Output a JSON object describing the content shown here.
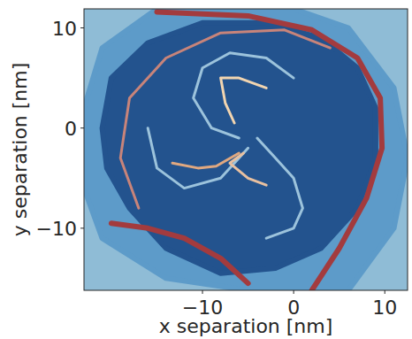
{
  "chart_data": {
    "type": "contour",
    "x_label": "x separation [nm]",
    "y_label": "y separation [nm]",
    "xlim": [
      -23,
      12.5
    ],
    "ylim": [
      -16.2,
      11.9
    ],
    "xticks": [
      {
        "value": -10,
        "label": "−10"
      },
      0,
      10
    ],
    "yticks": [
      {
        "value": -10,
        "label": "−10"
      },
      0,
      10
    ],
    "grid": false,
    "background": "#8fbcd6",
    "regions": [
      {
        "color": "#5d9bc9",
        "x": [
          -23,
          -21,
          -15,
          0,
          6,
          11,
          12.5,
          11,
          6,
          -5,
          -14,
          -21,
          -23
        ],
        "y": [
          2,
          8,
          11.9,
          11.9,
          10,
          4,
          -3,
          -10,
          -16.2,
          -16.2,
          -15,
          -11,
          -6
        ]
      },
      {
        "color": "#23538e",
        "x": [
          -21,
          -20,
          -16,
          -10,
          -3,
          3,
          7,
          9,
          9,
          7,
          3,
          -2,
          -8,
          -14,
          -18,
          -20.5
        ],
        "y": [
          0,
          5,
          8.5,
          10.5,
          10.5,
          9,
          6,
          2,
          -3,
          -8,
          -12,
          -14,
          -14.5,
          -12,
          -8,
          -4
        ]
      }
    ],
    "curves": [
      {
        "color": "#a33b3e",
        "x": [
          -15,
          -5,
          2,
          7,
          9.5,
          9.7,
          8,
          5,
          2
        ],
        "y": [
          11.6,
          11.2,
          9.8,
          7,
          3,
          -2,
          -7,
          -12,
          -16.2
        ]
      },
      {
        "color": "#a33b3e",
        "x": [
          -20,
          -16,
          -12,
          -8,
          -5
        ],
        "y": [
          -9.5,
          -10,
          -11,
          -13,
          -15.5
        ]
      },
      {
        "color": "#c8847a",
        "x": [
          -17,
          -19,
          -18,
          -14,
          -8,
          -1,
          4
        ],
        "y": [
          -8,
          -3,
          3,
          7,
          9.5,
          9.8,
          8
        ]
      },
      {
        "color": "#9cc3dc",
        "x": [
          -6,
          -9,
          -11,
          -10,
          -7,
          -3,
          0
        ],
        "y": [
          -1,
          0,
          3,
          6,
          7.5,
          7,
          5
        ]
      },
      {
        "color": "#9cc3dc",
        "x": [
          -5,
          -8,
          -12,
          -15,
          -16
        ],
        "y": [
          -2,
          -5,
          -6,
          -4,
          0
        ]
      },
      {
        "color": "#9cc3dc",
        "x": [
          -4,
          -2,
          0,
          1,
          0,
          -3
        ],
        "y": [
          -1,
          -3,
          -5,
          -8,
          -10,
          -11
        ]
      },
      {
        "color": "#f2d5b0",
        "x": [
          -6.5,
          -7.5,
          -8,
          -6,
          -3
        ],
        "y": [
          0.5,
          2.5,
          5,
          5,
          4
        ]
      },
      {
        "color": "#e0a880",
        "x": [
          -6,
          -8.5,
          -10.5,
          -13.3
        ],
        "y": [
          -2.5,
          -3.8,
          -4,
          -3.5
        ]
      },
      {
        "color": "#e8c0a0",
        "x": [
          -5.5,
          -7,
          -5,
          -3
        ],
        "y": [
          -2.5,
          -3.5,
          -5,
          -5.7
        ]
      }
    ]
  }
}
